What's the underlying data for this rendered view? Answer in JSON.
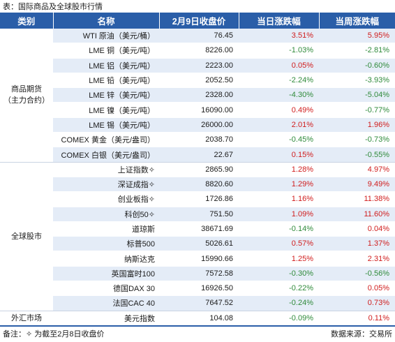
{
  "caption": "表：国际商品及全球股市行情",
  "headers": [
    "类别",
    "名称",
    "2月9日收盘价",
    "当日涨跌幅",
    "当周涨跌幅"
  ],
  "groups": [
    {
      "category_lines": [
        "商品期货",
        "（主力合约）"
      ],
      "rows": [
        {
          "name": "WTI 原油（美元/桶）",
          "close": "76.45",
          "day": "3.51%",
          "day_dir": "up",
          "week": "5.95%",
          "week_dir": "up"
        },
        {
          "name": "LME 铜（美元/吨）",
          "close": "8226.00",
          "day": "-1.03%",
          "day_dir": "down",
          "week": "-2.81%",
          "week_dir": "down"
        },
        {
          "name": "LME 铝（美元/吨）",
          "close": "2223.00",
          "day": "0.05%",
          "day_dir": "up",
          "week": "-0.60%",
          "week_dir": "down"
        },
        {
          "name": "LME 铅（美元/吨）",
          "close": "2052.50",
          "day": "-2.24%",
          "day_dir": "down",
          "week": "-3.93%",
          "week_dir": "down"
        },
        {
          "name": "LME 锌（美元/吨）",
          "close": "2328.00",
          "day": "-4.30%",
          "day_dir": "down",
          "week": "-5.04%",
          "week_dir": "down"
        },
        {
          "name": "LME 镍（美元/吨）",
          "close": "16090.00",
          "day": "0.49%",
          "day_dir": "up",
          "week": "-0.77%",
          "week_dir": "down"
        },
        {
          "name": "LME 锡（美元/吨）",
          "close": "26000.00",
          "day": "2.01%",
          "day_dir": "up",
          "week": "1.96%",
          "week_dir": "up"
        },
        {
          "name": "COMEX 黄金（美元/盎司）",
          "close": "2038.70",
          "day": "-0.45%",
          "day_dir": "down",
          "week": "-0.73%",
          "week_dir": "down"
        },
        {
          "name": "COMEX 白银（美元/盎司）",
          "close": "22.67",
          "day": "0.15%",
          "day_dir": "up",
          "week": "-0.55%",
          "week_dir": "down"
        }
      ]
    },
    {
      "category_lines": [
        "全球股市"
      ],
      "rows": [
        {
          "name": "上证指数✧",
          "close": "2865.90",
          "day": "1.28%",
          "day_dir": "up",
          "week": "4.97%",
          "week_dir": "up"
        },
        {
          "name": "深证成指✧",
          "close": "8820.60",
          "day": "1.29%",
          "day_dir": "up",
          "week": "9.49%",
          "week_dir": "up"
        },
        {
          "name": "创业板指✧",
          "close": "1726.86",
          "day": "1.16%",
          "day_dir": "up",
          "week": "11.38%",
          "week_dir": "up"
        },
        {
          "name": "科创50✧",
          "close": "751.50",
          "day": "1.09%",
          "day_dir": "up",
          "week": "11.60%",
          "week_dir": "up"
        },
        {
          "name": "道琼斯",
          "close": "38671.69",
          "day": "-0.14%",
          "day_dir": "down",
          "week": "0.04%",
          "week_dir": "up"
        },
        {
          "name": "标普500",
          "close": "5026.61",
          "day": "0.57%",
          "day_dir": "up",
          "week": "1.37%",
          "week_dir": "up"
        },
        {
          "name": "纳斯达克",
          "close": "15990.66",
          "day": "1.25%",
          "day_dir": "up",
          "week": "2.31%",
          "week_dir": "up"
        },
        {
          "name": "英国富时100",
          "close": "7572.58",
          "day": "-0.30%",
          "day_dir": "down",
          "week": "-0.56%",
          "week_dir": "down"
        },
        {
          "name": "德国DAX 30",
          "close": "16926.50",
          "day": "-0.22%",
          "day_dir": "down",
          "week": "0.05%",
          "week_dir": "up"
        },
        {
          "name": "法国CAC 40",
          "close": "7647.52",
          "day": "-0.24%",
          "day_dir": "down",
          "week": "0.73%",
          "week_dir": "up"
        }
      ]
    },
    {
      "category_lines": [
        "外汇市场"
      ],
      "rows": [
        {
          "name": "美元指数",
          "close": "104.08",
          "day": "-0.09%",
          "day_dir": "down",
          "week": "0.11%",
          "week_dir": "up"
        }
      ]
    }
  ],
  "footer": {
    "note": "备注：✧ 为截至2月8日收盘价",
    "source": "数据来源：交易所"
  },
  "colors": {
    "header_bg": "#2a5ea8",
    "stripe": "#e4ecf7",
    "up": "#d01c1c",
    "down": "#2f8a3a"
  }
}
